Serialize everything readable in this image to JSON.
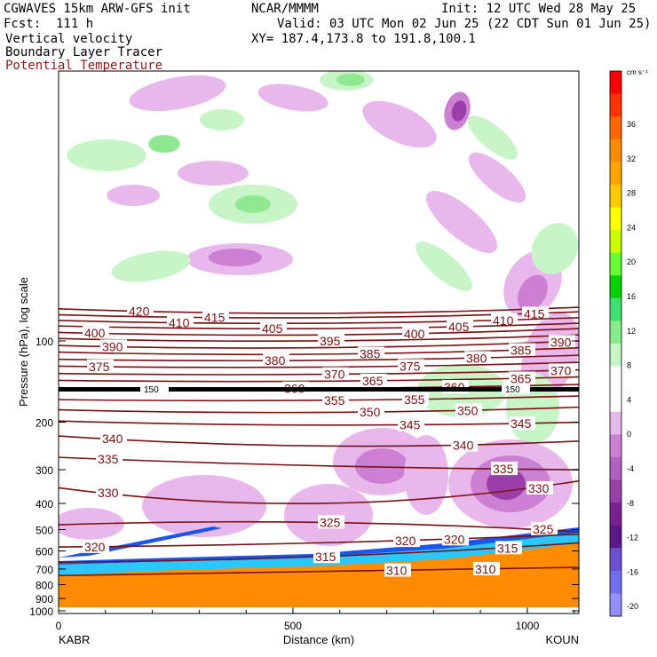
{
  "header": {
    "title": "CGWAVES 15km ARW-GFS init",
    "forecast": "Fcst:  111 h",
    "field1": "Vertical velocity",
    "field2": "Boundary Layer Tracer",
    "field3": "Potential Temperature",
    "org": "NCAR/MMMM",
    "init": "Init: 12 UTC Wed 28 May 25",
    "valid": "Valid: 03 UTC Mon 02 Jun 25 (22 CDT Sun 01 Jun 25)",
    "xy": "XY= 187.4,173.8 to 191.8,100.1"
  },
  "colors": {
    "theta": "#7a1010",
    "field3_text": "#8b1a1a",
    "orange": "#ff8c00",
    "purple_light": "#e8b8ec",
    "purple_mid": "#cc80d4",
    "purple_dark": "#9b3fa8",
    "green_light": "#c8f5c8",
    "green_mid": "#90e890",
    "green_dark": "#50d050",
    "blue": "#1a55ee",
    "cyan": "#28c8ff"
  },
  "chart_data": {
    "type": "heatmap",
    "xlabel": "Distance (km)",
    "ylabel": "Pressure (hPa), log scale",
    "x_ticks": [
      0,
      500,
      1000
    ],
    "xlim": [
      0,
      1110
    ],
    "endpoints": [
      "KABR",
      "KOUN"
    ],
    "y_ticks": [
      100,
      200,
      300,
      400,
      500,
      600,
      700,
      800,
      900,
      1000
    ],
    "y_scale": "log",
    "colorbar": {
      "unit": "cm s⁻¹",
      "ticks": [
        36,
        32,
        28,
        24,
        20,
        16,
        12,
        8,
        4,
        0,
        -4,
        -8,
        -12,
        -16,
        -20
      ],
      "colors": [
        "#ff0000",
        "#ff3300",
        "#ff6600",
        "#ff8c00",
        "#ffa500",
        "#ffcc00",
        "#ffff00",
        "#c8ff00",
        "#66ff33",
        "#00d400",
        "#40e070",
        "#88ee88",
        "#c8f5c8",
        "#ffffff",
        "#ffffff",
        "#e8b8ec",
        "#cc80d4",
        "#b060c0",
        "#9b3fa8",
        "#7a2090",
        "#5a1a8a",
        "#6a50d0",
        "#7070ee",
        "#9090ff"
      ]
    },
    "tropopause_label": "150",
    "theta_contours": [
      {
        "value": 420,
        "label": "420"
      },
      {
        "value": 415,
        "label": "415"
      },
      {
        "value": 410,
        "label": "410"
      },
      {
        "value": 405,
        "label": "405"
      },
      {
        "value": 400,
        "label": "400"
      },
      {
        "value": 395,
        "label": "395"
      },
      {
        "value": 390,
        "label": "390"
      },
      {
        "value": 385,
        "label": "385"
      },
      {
        "value": 380,
        "label": "380"
      },
      {
        "value": 375,
        "label": "375"
      },
      {
        "value": 370,
        "label": "370"
      },
      {
        "value": 365,
        "label": "365"
      },
      {
        "value": 360,
        "label": "360"
      },
      {
        "value": 355,
        "label": "355"
      },
      {
        "value": 350,
        "label": "350"
      },
      {
        "value": 345,
        "label": "345"
      },
      {
        "value": 340,
        "label": "340"
      },
      {
        "value": 335,
        "label": "335"
      },
      {
        "value": 330,
        "label": "330"
      },
      {
        "value": 325,
        "label": "325"
      },
      {
        "value": 320,
        "label": "320"
      },
      {
        "value": 315,
        "label": "315"
      },
      {
        "value": 310,
        "label": "310"
      }
    ]
  }
}
